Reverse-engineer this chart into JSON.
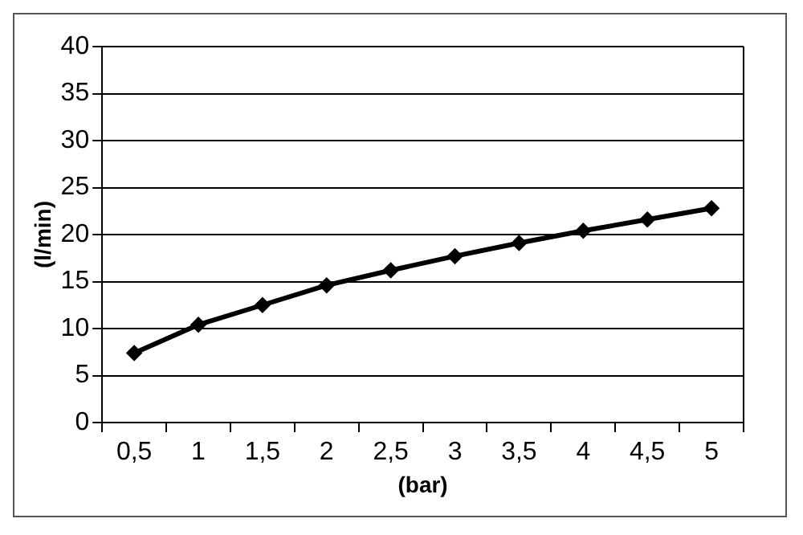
{
  "chart_data": {
    "type": "line",
    "xlabel": "(bar)",
    "ylabel": "(l/min)",
    "categories": [
      "0,5",
      "1",
      "1,5",
      "2",
      "2,5",
      "3",
      "3,5",
      "4",
      "4,5",
      "5"
    ],
    "series": [
      {
        "color": "#000000",
        "values": [
          7.4,
          10.4,
          12.5,
          14.6,
          16.2,
          17.7,
          19.1,
          20.4,
          21.6,
          22.8
        ]
      }
    ],
    "ylim": [
      0,
      40
    ],
    "yticks": [
      0,
      5,
      10,
      15,
      20,
      25,
      30,
      35,
      40
    ],
    "grid": "y",
    "legend": false,
    "marker": "diamond",
    "line_style": "solid"
  }
}
